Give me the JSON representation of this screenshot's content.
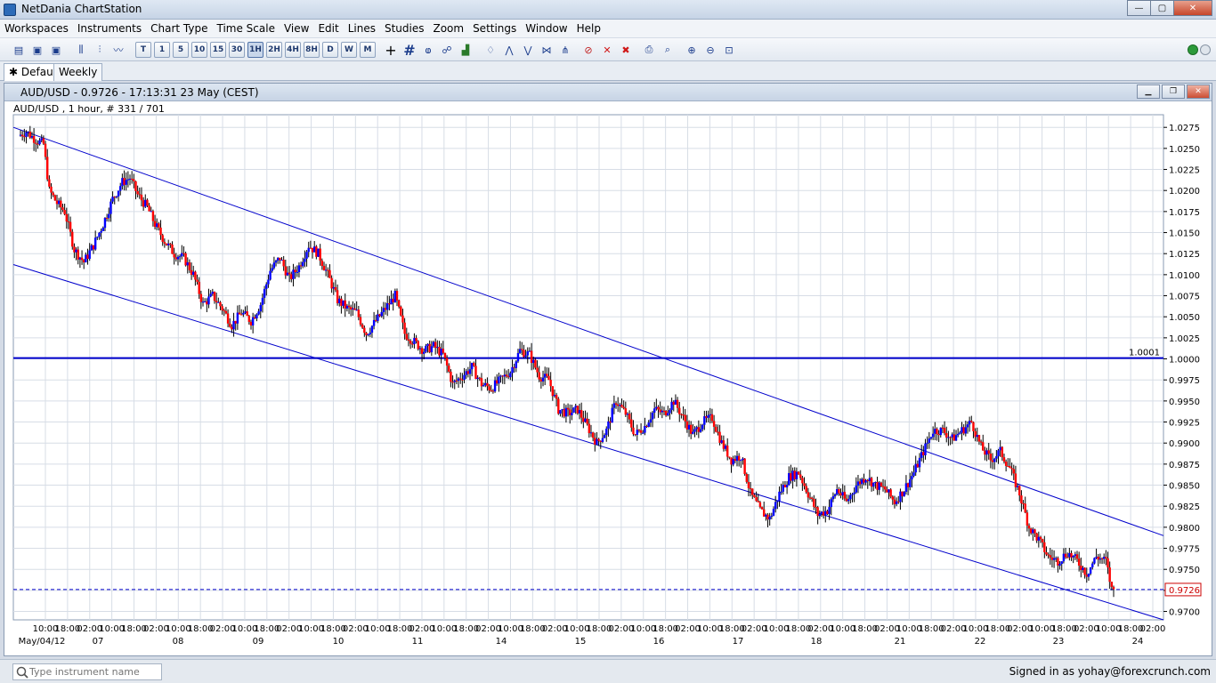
{
  "app": {
    "title": "NetDania ChartStation",
    "window_buttons": [
      "—",
      "▢",
      "✕"
    ]
  },
  "menu": [
    "Workspaces",
    "Instruments",
    "Chart Type",
    "Time Scale",
    "View",
    "Edit",
    "Lines",
    "Studies",
    "Zoom",
    "Settings",
    "Window",
    "Help"
  ],
  "toolbar": {
    "timeframes": [
      "T",
      "1",
      "5",
      "10",
      "15",
      "30",
      "1H",
      "2H",
      "4H",
      "8H",
      "D",
      "W",
      "M"
    ],
    "active_timeframe": "1H"
  },
  "tabs": [
    "Default",
    "Weekly"
  ],
  "chart_window": {
    "title": "AUD/USD - 0.9726 - 17:13:31  23 May (CEST)",
    "subtitle": "AUD/USD , 1 hour, # 331 / 701"
  },
  "statusbar": {
    "search_placeholder": "Type instrument name",
    "signed_in": "Signed in as yohay@forexcrunch.com"
  },
  "chart_data": {
    "type": "candlestick",
    "instrument": "AUD/USD",
    "y_ticks": [
      "1.0275",
      "1.0250",
      "1.0225",
      "1.0200",
      "1.0175",
      "1.0150",
      "1.0125",
      "1.0100",
      "1.0075",
      "1.0050",
      "1.0025",
      "1.0000",
      "0.9975",
      "0.9950",
      "0.9925",
      "0.9900",
      "0.9875",
      "0.9850",
      "0.9825",
      "0.9800",
      "0.9775",
      "0.9750",
      "0.9725",
      "0.9700"
    ],
    "ylim": [
      0.969,
      1.029
    ],
    "x_time_labels": [
      "10:00",
      "18:00",
      "02:00",
      "10:00",
      "18:00",
      "02:00",
      "10:00",
      "18:00",
      "02:00",
      "10:00",
      "18:00",
      "02:00",
      "10:00",
      "18:00",
      "02:00",
      "10:00",
      "18:00",
      "02:00",
      "10:00",
      "18:00",
      "02:00",
      "10:00",
      "18:00",
      "02:00",
      "10:00",
      "18:00",
      "02:00",
      "10:00",
      "18:00",
      "02:00",
      "10:00",
      "18:00",
      "02:00",
      "10:00",
      "18:00",
      "02:00",
      "10:00",
      "18:00",
      "02:00",
      "10:00",
      "18:00",
      "02:00",
      "10:00",
      "18:00",
      "02:00",
      "10:00",
      "18:00",
      "02:00",
      "10:00",
      "18:00",
      "02:00"
    ],
    "x_date_labels": [
      "May/04/12",
      "07",
      "08",
      "09",
      "10",
      "11",
      "14",
      "15",
      "16",
      "17",
      "18",
      "21",
      "22",
      "23",
      "24"
    ],
    "horizontal_line": {
      "value": 1.0001,
      "label": "1.0001",
      "color": "#0000cc"
    },
    "current_price": {
      "value": 0.9726,
      "label": "0.9726",
      "color": "#0000cc"
    },
    "channel_upper": [
      [
        1.0275,
        0
      ],
      [
        0.979,
        701
      ]
    ],
    "channel_lower": [
      [
        1.0112,
        0
      ],
      [
        0.969,
        701
      ]
    ],
    "anchors": [
      [
        0,
        1.0265
      ],
      [
        4,
        1.027
      ],
      [
        9,
        1.026
      ],
      [
        13,
        1.0255
      ],
      [
        16,
        1.02
      ],
      [
        20,
        1.0185
      ],
      [
        24,
        1.0175
      ],
      [
        29,
        1.013
      ],
      [
        34,
        1.0115
      ],
      [
        39,
        1.0135
      ],
      [
        44,
        1.016
      ],
      [
        49,
        1.019
      ],
      [
        54,
        1.021
      ],
      [
        58,
        1.0215
      ],
      [
        62,
        1.0195
      ],
      [
        67,
        1.018
      ],
      [
        71,
        1.016
      ],
      [
        76,
        1.014
      ],
      [
        81,
        1.0125
      ],
      [
        86,
        1.012
      ],
      [
        91,
        1.01
      ],
      [
        96,
        1.0065
      ],
      [
        101,
        1.0075
      ],
      [
        106,
        1.006
      ],
      [
        111,
        1.004
      ],
      [
        116,
        1.0055
      ],
      [
        121,
        1.0045
      ],
      [
        126,
        1.0065
      ],
      [
        131,
        1.0105
      ],
      [
        136,
        1.012
      ],
      [
        141,
        1.0095
      ],
      [
        146,
        1.011
      ],
      [
        151,
        1.0135
      ],
      [
        156,
        1.0125
      ],
      [
        161,
        1.01
      ],
      [
        166,
        1.007
      ],
      [
        171,
        1.006
      ],
      [
        176,
        1.0055
      ],
      [
        181,
        1.003
      ],
      [
        186,
        1.0045
      ],
      [
        191,
        1.006
      ],
      [
        196,
        1.0075
      ],
      [
        201,
        1.003
      ],
      [
        206,
        1.002
      ],
      [
        211,
        1.001
      ],
      [
        216,
        1.0015
      ],
      [
        221,
        1.0005
      ],
      [
        226,
        0.997
      ],
      [
        231,
        0.998
      ],
      [
        236,
        0.999
      ],
      [
        241,
        0.997
      ],
      [
        246,
        0.9965
      ],
      [
        251,
        0.9975
      ],
      [
        256,
        0.9985
      ],
      [
        261,
        1.001
      ],
      [
        266,
        1.0005
      ],
      [
        271,
        0.998
      ],
      [
        276,
        0.9975
      ],
      [
        281,
        0.994
      ],
      [
        286,
        0.9935
      ],
      [
        291,
        0.994
      ],
      [
        296,
        0.992
      ],
      [
        301,
        0.99
      ],
      [
        306,
        0.9915
      ],
      [
        311,
        0.995
      ],
      [
        316,
        0.9935
      ],
      [
        321,
        0.991
      ],
      [
        326,
        0.992
      ],
      [
        331,
        0.994
      ],
      [
        336,
        0.9935
      ],
      [
        341,
        0.995
      ],
      [
        346,
        0.993
      ],
      [
        351,
        0.991
      ],
      [
        356,
        0.9925
      ],
      [
        361,
        0.993
      ],
      [
        366,
        0.99
      ],
      [
        371,
        0.988
      ],
      [
        376,
        0.9885
      ],
      [
        381,
        0.984
      ],
      [
        386,
        0.982
      ],
      [
        391,
        0.981
      ],
      [
        396,
        0.984
      ],
      [
        401,
        0.986
      ],
      [
        406,
        0.9865
      ],
      [
        411,
        0.984
      ],
      [
        416,
        0.9815
      ],
      [
        421,
        0.982
      ],
      [
        426,
        0.9845
      ],
      [
        431,
        0.983
      ],
      [
        436,
        0.985
      ],
      [
        441,
        0.986
      ],
      [
        446,
        0.985
      ],
      [
        451,
        0.9845
      ],
      [
        456,
        0.983
      ],
      [
        461,
        0.9845
      ],
      [
        466,
        0.9865
      ],
      [
        471,
        0.989
      ],
      [
        476,
        0.9915
      ],
      [
        481,
        0.9915
      ],
      [
        486,
        0.9905
      ],
      [
        491,
        0.9915
      ],
      [
        496,
        0.9925
      ],
      [
        501,
        0.9895
      ],
      [
        506,
        0.988
      ],
      [
        511,
        0.989
      ],
      [
        516,
        0.987
      ],
      [
        521,
        0.984
      ],
      [
        526,
        0.98
      ],
      [
        531,
        0.9785
      ],
      [
        536,
        0.9765
      ],
      [
        541,
        0.976
      ],
      [
        546,
        0.977
      ],
      [
        551,
        0.976
      ],
      [
        556,
        0.9745
      ],
      [
        561,
        0.9765
      ],
      [
        566,
        0.976
      ],
      [
        569,
        0.9726
      ]
    ],
    "candle_count": 570,
    "x_range": [
      0,
      701
    ],
    "grid": true
  }
}
